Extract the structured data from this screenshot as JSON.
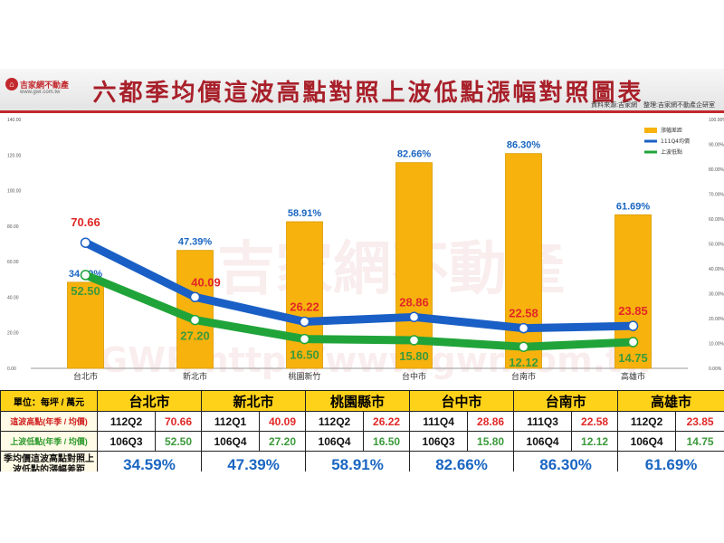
{
  "header": {
    "logo_name": "吉家網不動產",
    "logo_url": "www.gwr.com.tw",
    "title": "六都季均價這波高點對照上波低點漲幅對照圖表",
    "source": "資料來源:吉家網　整理:吉家網不動產企研室"
  },
  "watermark": {
    "main": "吉家網不動產",
    "sub": "GWR http://www.gwr.com.tw"
  },
  "chart_data": {
    "type": "bar",
    "categories": [
      "台北市",
      "新北市",
      "桃園新竹",
      "台中市",
      "台南市",
      "高雄市"
    ],
    "series": [
      {
        "name": "漲幅差距",
        "kind": "bar",
        "values": [
          34.59,
          47.39,
          58.91,
          82.66,
          86.3,
          61.69
        ],
        "labels": [
          "34.59%",
          "47.39%",
          "58.91%",
          "82.66%",
          "86.30%",
          "61.69%"
        ],
        "color": "#f7b20e"
      },
      {
        "name": "111Q4均價",
        "kind": "line",
        "values": [
          70.66,
          40.09,
          26.22,
          28.86,
          22.58,
          23.85
        ],
        "labels": [
          "70.66",
          "40.09",
          "26.22",
          "28.86",
          "22.58",
          "23.85"
        ],
        "color": "#1a5fc5"
      },
      {
        "name": "上波低點",
        "kind": "line",
        "values": [
          52.5,
          27.2,
          16.5,
          15.8,
          12.12,
          14.75
        ],
        "labels": [
          "52.50",
          "27.20",
          "16.50",
          "15.80",
          "12.12",
          "14.75"
        ],
        "color": "#20a43a"
      }
    ],
    "y_left": {
      "ticks": [
        "0.00",
        "20.00",
        "40.00",
        "60.00",
        "80.00",
        "100.00",
        "120.00",
        "140.00"
      ],
      "range": [
        0,
        140
      ]
    },
    "y_right": {
      "ticks": [
        "0.00%",
        "10.00%",
        "20.00%",
        "30.00%",
        "40.00%",
        "50.00%",
        "60.00%",
        "70.00%",
        "80.00%",
        "90.00%",
        "100.00%"
      ],
      "range": [
        0,
        100
      ]
    },
    "legend_position": "top-right"
  },
  "table": {
    "unit_label": "單位：每坪 / 萬元",
    "cities": [
      "台北市",
      "新北市",
      "桃園縣市",
      "台中市",
      "台南市",
      "高雄市"
    ],
    "high_label": "這波高點(年季 / 均價)",
    "low_label": "上波低點(年季 / 均價)",
    "pct_label": "季均價這波高點對照上波低點的漲幅差距",
    "high": [
      {
        "q": "112Q2",
        "v": "70.66"
      },
      {
        "q": "112Q1",
        "v": "40.09"
      },
      {
        "q": "112Q2",
        "v": "26.22"
      },
      {
        "q": "111Q4",
        "v": "28.86"
      },
      {
        "q": "111Q3",
        "v": "22.58"
      },
      {
        "q": "112Q2",
        "v": "23.85"
      }
    ],
    "low": [
      {
        "q": "106Q3",
        "v": "52.50"
      },
      {
        "q": "106Q4",
        "v": "27.20"
      },
      {
        "q": "106Q4",
        "v": "16.50"
      },
      {
        "q": "106Q3",
        "v": "15.80"
      },
      {
        "q": "106Q4",
        "v": "12.12"
      },
      {
        "q": "106Q4",
        "v": "14.75"
      }
    ],
    "pct": [
      "34.59%",
      "47.39%",
      "58.91%",
      "82.66%",
      "86.30%",
      "61.69%"
    ]
  }
}
